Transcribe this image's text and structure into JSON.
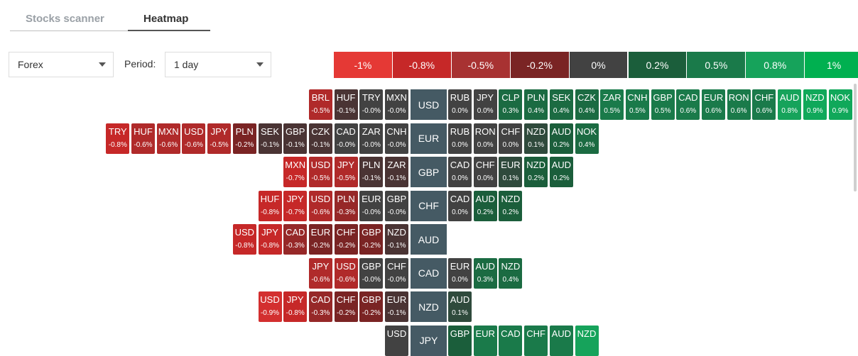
{
  "tabs": [
    {
      "label": "Stocks scanner",
      "active": false
    },
    {
      "label": "Heatmap",
      "active": true
    }
  ],
  "controls": {
    "market_value": "Forex",
    "period_label": "Period:",
    "period_value": "1 day"
  },
  "legend": [
    {
      "label": "-1%",
      "color": "#e53935"
    },
    {
      "label": "-0.8%",
      "color": "#c62828"
    },
    {
      "label": "-0.5%",
      "color": "#a83232"
    },
    {
      "label": "-0.2%",
      "color": "#7a2424"
    },
    {
      "label": "0%",
      "color": "#424242"
    },
    {
      "label": "0.2%",
      "color": "#1b5e3b"
    },
    {
      "label": "0.5%",
      "color": "#1a7a4a"
    },
    {
      "label": "0.8%",
      "color": "#16a35b"
    },
    {
      "label": "1%",
      "color": "#00b050"
    }
  ],
  "rows": [
    {
      "base": "USD",
      "left": [
        [
          "BRL",
          "-0.5%"
        ],
        [
          "HUF",
          "-0.1%"
        ],
        [
          "TRY",
          "-0.0%"
        ],
        [
          "MXN",
          "-0.0%"
        ]
      ],
      "right": [
        [
          "RUB",
          "0.0%"
        ],
        [
          "JPY",
          "0.0%"
        ],
        [
          "CLP",
          "0.3%"
        ],
        [
          "PLN",
          "0.4%"
        ],
        [
          "SEK",
          "0.4%"
        ],
        [
          "CZK",
          "0.4%"
        ],
        [
          "ZAR",
          "0.5%"
        ],
        [
          "CNH",
          "0.5%"
        ],
        [
          "GBP",
          "0.5%"
        ],
        [
          "CAD",
          "0.6%"
        ],
        [
          "EUR",
          "0.6%"
        ],
        [
          "RON",
          "0.6%"
        ],
        [
          "CHF",
          "0.6%"
        ],
        [
          "AUD",
          "0.8%"
        ],
        [
          "NZD",
          "0.9%"
        ],
        [
          "NOK",
          "0.9%"
        ]
      ]
    },
    {
      "base": "EUR",
      "left": [
        [
          "TRY",
          "-0.8%"
        ],
        [
          "HUF",
          "-0.6%"
        ],
        [
          "MXN",
          "-0.6%"
        ],
        [
          "USD",
          "-0.6%"
        ],
        [
          "JPY",
          "-0.5%"
        ],
        [
          "PLN",
          "-0.2%"
        ],
        [
          "SEK",
          "-0.1%"
        ],
        [
          "GBP",
          "-0.1%"
        ],
        [
          "CZK",
          "-0.1%"
        ],
        [
          "CAD",
          "-0.0%"
        ],
        [
          "ZAR",
          "-0.0%"
        ],
        [
          "CNH",
          "-0.0%"
        ]
      ],
      "right": [
        [
          "RUB",
          "0.0%"
        ],
        [
          "RON",
          "0.0%"
        ],
        [
          "CHF",
          "0.0%"
        ],
        [
          "NZD",
          "0.1%"
        ],
        [
          "AUD",
          "0.2%"
        ],
        [
          "NOK",
          "0.4%"
        ]
      ]
    },
    {
      "base": "GBP",
      "left": [
        [
          "MXN",
          "-0.7%"
        ],
        [
          "USD",
          "-0.5%"
        ],
        [
          "JPY",
          "-0.5%"
        ],
        [
          "PLN",
          "-0.1%"
        ],
        [
          "ZAR",
          "-0.1%"
        ]
      ],
      "right": [
        [
          "CAD",
          "0.0%"
        ],
        [
          "CHF",
          "0.0%"
        ],
        [
          "EUR",
          "0.1%"
        ],
        [
          "NZD",
          "0.2%"
        ],
        [
          "AUD",
          "0.2%"
        ]
      ]
    },
    {
      "base": "CHF",
      "left": [
        [
          "HUF",
          "-0.8%"
        ],
        [
          "JPY",
          "-0.7%"
        ],
        [
          "USD",
          "-0.6%"
        ],
        [
          "PLN",
          "-0.3%"
        ],
        [
          "EUR",
          "-0.0%"
        ],
        [
          "GBP",
          "-0.0%"
        ]
      ],
      "right": [
        [
          "CAD",
          "0.0%"
        ],
        [
          "AUD",
          "0.2%"
        ],
        [
          "NZD",
          "0.2%"
        ]
      ]
    },
    {
      "base": "AUD",
      "left": [
        [
          "USD",
          "-0.8%"
        ],
        [
          "JPY",
          "-0.8%"
        ],
        [
          "CAD",
          "-0.3%"
        ],
        [
          "EUR",
          "-0.2%"
        ],
        [
          "CHF",
          "-0.2%"
        ],
        [
          "GBP",
          "-0.2%"
        ],
        [
          "NZD",
          "-0.1%"
        ]
      ],
      "right": []
    },
    {
      "base": "CAD",
      "left": [
        [
          "JPY",
          "-0.6%"
        ],
        [
          "USD",
          "-0.6%"
        ],
        [
          "GBP",
          "-0.0%"
        ],
        [
          "CHF",
          "-0.0%"
        ]
      ],
      "right": [
        [
          "EUR",
          "0.0%"
        ],
        [
          "AUD",
          "0.3%"
        ],
        [
          "NZD",
          "0.4%"
        ]
      ]
    },
    {
      "base": "NZD",
      "left": [
        [
          "USD",
          "-0.9%"
        ],
        [
          "JPY",
          "-0.8%"
        ],
        [
          "CAD",
          "-0.3%"
        ],
        [
          "CHF",
          "-0.2%"
        ],
        [
          "GBP",
          "-0.2%"
        ],
        [
          "EUR",
          "-0.1%"
        ]
      ],
      "right": [
        [
          "AUD",
          "0.1%"
        ]
      ]
    },
    {
      "base": "JPY",
      "left": [
        [
          "USD",
          ""
        ]
      ],
      "right": [
        [
          "GBP",
          ""
        ],
        [
          "EUR",
          ""
        ],
        [
          "CAD",
          ""
        ],
        [
          "CHF",
          ""
        ],
        [
          "AUD",
          ""
        ],
        [
          "NZD",
          ""
        ]
      ]
    }
  ],
  "last_row_colors": {
    "left": [
      "#424242"
    ],
    "right": [
      "#1b5e3b",
      "#1a7a4a",
      "#1a7a4a",
      "#1a7a4a",
      "#1a7a4a",
      "#16a35b"
    ]
  }
}
